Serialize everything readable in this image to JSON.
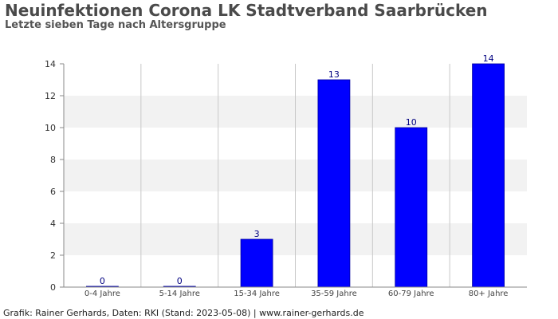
{
  "chart_data": {
    "type": "bar",
    "title": "Neuinfektionen Corona LK Stadtverband Saarbrücken",
    "subtitle": "Letzte sieben Tage nach Altersgruppe",
    "categories": [
      "0-4 Jahre",
      "5-14 Jahre",
      "15-34 Jahre",
      "35-59 Jahre",
      "60-79 Jahre",
      "80+ Jahre"
    ],
    "values": [
      0,
      0,
      3,
      13,
      10,
      14
    ],
    "ylim": [
      0,
      14
    ],
    "yticks": [
      0,
      2,
      4,
      6,
      8,
      10,
      12,
      14
    ],
    "xlabel": "",
    "ylabel": "",
    "grid": true,
    "bar_color": "#0000ff",
    "label_color": "#000080",
    "band_color": "#f2f2f2"
  },
  "footer": {
    "source": "Grafik: Rainer Gerhards, Daten: RKI (Stand: 2023-05-08) | www.rainer-gerhards.de"
  }
}
